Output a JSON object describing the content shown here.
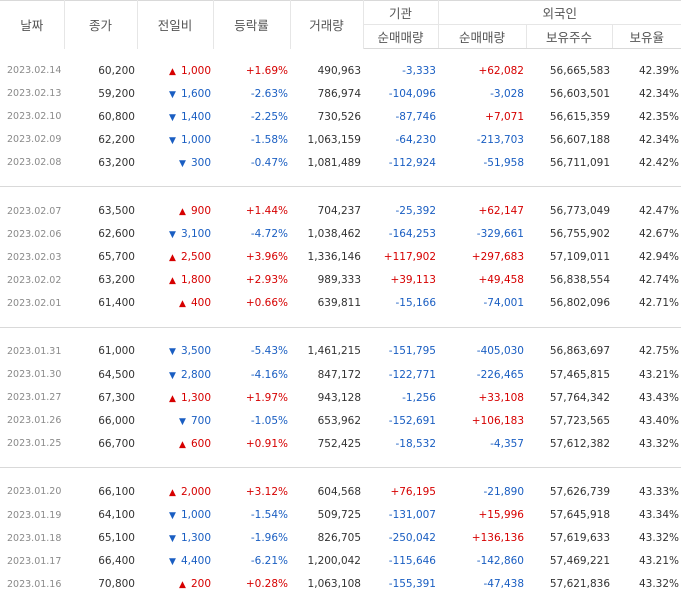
{
  "header": {
    "date": "날짜",
    "close": "종가",
    "change": "전일비",
    "rate": "등락률",
    "volume": "거래량",
    "institution": "기관",
    "foreigner": "외국인",
    "inst_net": "순매매량",
    "for_net": "순매매량",
    "for_hold": "보유주수",
    "for_ratio": "보유율"
  },
  "groups": [
    [
      {
        "date": "2023.02.14",
        "close": "60,200",
        "dir": "up",
        "change": "1,000",
        "rate": "+1.69%",
        "volume": "490,963",
        "inst": "-3,333",
        "foreign": "+62,082",
        "hold": "56,665,583",
        "ratio": "42.39%"
      },
      {
        "date": "2023.02.13",
        "close": "59,200",
        "dir": "down",
        "change": "1,600",
        "rate": "-2.63%",
        "volume": "786,974",
        "inst": "-104,096",
        "foreign": "-3,028",
        "hold": "56,603,501",
        "ratio": "42.34%"
      },
      {
        "date": "2023.02.10",
        "close": "60,800",
        "dir": "down",
        "change": "1,400",
        "rate": "-2.25%",
        "volume": "730,526",
        "inst": "-87,746",
        "foreign": "+7,071",
        "hold": "56,615,359",
        "ratio": "42.35%"
      },
      {
        "date": "2023.02.09",
        "close": "62,200",
        "dir": "down",
        "change": "1,000",
        "rate": "-1.58%",
        "volume": "1,063,159",
        "inst": "-64,230",
        "foreign": "-213,703",
        "hold": "56,607,188",
        "ratio": "42.34%"
      },
      {
        "date": "2023.02.08",
        "close": "63,200",
        "dir": "down",
        "change": "300",
        "rate": "-0.47%",
        "volume": "1,081,489",
        "inst": "-112,924",
        "foreign": "-51,958",
        "hold": "56,711,091",
        "ratio": "42.42%"
      }
    ],
    [
      {
        "date": "2023.02.07",
        "close": "63,500",
        "dir": "up",
        "change": "900",
        "rate": "+1.44%",
        "volume": "704,237",
        "inst": "-25,392",
        "foreign": "+62,147",
        "hold": "56,773,049",
        "ratio": "42.47%"
      },
      {
        "date": "2023.02.06",
        "close": "62,600",
        "dir": "down",
        "change": "3,100",
        "rate": "-4.72%",
        "volume": "1,038,462",
        "inst": "-164,253",
        "foreign": "-329,661",
        "hold": "56,755,902",
        "ratio": "42.67%"
      },
      {
        "date": "2023.02.03",
        "close": "65,700",
        "dir": "up",
        "change": "2,500",
        "rate": "+3.96%",
        "volume": "1,336,146",
        "inst": "+117,902",
        "foreign": "+297,683",
        "hold": "57,109,011",
        "ratio": "42.94%"
      },
      {
        "date": "2023.02.02",
        "close": "63,200",
        "dir": "up",
        "change": "1,800",
        "rate": "+2.93%",
        "volume": "989,333",
        "inst": "+39,113",
        "foreign": "+49,458",
        "hold": "56,838,554",
        "ratio": "42.74%"
      },
      {
        "date": "2023.02.01",
        "close": "61,400",
        "dir": "up",
        "change": "400",
        "rate": "+0.66%",
        "volume": "639,811",
        "inst": "-15,166",
        "foreign": "-74,001",
        "hold": "56,802,096",
        "ratio": "42.71%"
      }
    ],
    [
      {
        "date": "2023.01.31",
        "close": "61,000",
        "dir": "down",
        "change": "3,500",
        "rate": "-5.43%",
        "volume": "1,461,215",
        "inst": "-151,795",
        "foreign": "-405,030",
        "hold": "56,863,697",
        "ratio": "42.75%"
      },
      {
        "date": "2023.01.30",
        "close": "64,500",
        "dir": "down",
        "change": "2,800",
        "rate": "-4.16%",
        "volume": "847,172",
        "inst": "-122,771",
        "foreign": "-226,465",
        "hold": "57,465,815",
        "ratio": "43.21%"
      },
      {
        "date": "2023.01.27",
        "close": "67,300",
        "dir": "up",
        "change": "1,300",
        "rate": "+1.97%",
        "volume": "943,128",
        "inst": "-1,256",
        "foreign": "+33,108",
        "hold": "57,764,342",
        "ratio": "43.43%"
      },
      {
        "date": "2023.01.26",
        "close": "66,000",
        "dir": "down",
        "change": "700",
        "rate": "-1.05%",
        "volume": "653,962",
        "inst": "-152,691",
        "foreign": "+106,183",
        "hold": "57,723,565",
        "ratio": "43.40%"
      },
      {
        "date": "2023.01.25",
        "close": "66,700",
        "dir": "up",
        "change": "600",
        "rate": "+0.91%",
        "volume": "752,425",
        "inst": "-18,532",
        "foreign": "-4,357",
        "hold": "57,612,382",
        "ratio": "43.32%"
      }
    ],
    [
      {
        "date": "2023.01.20",
        "close": "66,100",
        "dir": "up",
        "change": "2,000",
        "rate": "+3.12%",
        "volume": "604,568",
        "inst": "+76,195",
        "foreign": "-21,890",
        "hold": "57,626,739",
        "ratio": "43.33%"
      },
      {
        "date": "2023.01.19",
        "close": "64,100",
        "dir": "down",
        "change": "1,000",
        "rate": "-1.54%",
        "volume": "509,725",
        "inst": "-131,007",
        "foreign": "+15,996",
        "hold": "57,645,918",
        "ratio": "43.34%"
      },
      {
        "date": "2023.01.18",
        "close": "65,100",
        "dir": "down",
        "change": "1,300",
        "rate": "-1.96%",
        "volume": "826,705",
        "inst": "-250,042",
        "foreign": "+136,136",
        "hold": "57,619,633",
        "ratio": "43.32%"
      },
      {
        "date": "2023.01.17",
        "close": "66,400",
        "dir": "down",
        "change": "4,400",
        "rate": "-6.21%",
        "volume": "1,200,042",
        "inst": "-115,646",
        "foreign": "-142,860",
        "hold": "57,469,221",
        "ratio": "43.21%"
      },
      {
        "date": "2023.01.16",
        "close": "70,800",
        "dir": "up",
        "change": "200",
        "rate": "+0.28%",
        "volume": "1,063,108",
        "inst": "-155,391",
        "foreign": "-47,438",
        "hold": "57,621,836",
        "ratio": "43.32%"
      }
    ]
  ],
  "icons": {
    "up": "triangle-up-icon",
    "down": "triangle-down-icon"
  },
  "colors": {
    "up": "#d60000",
    "down": "#1a5ec2",
    "date": "#8a8a8a"
  }
}
